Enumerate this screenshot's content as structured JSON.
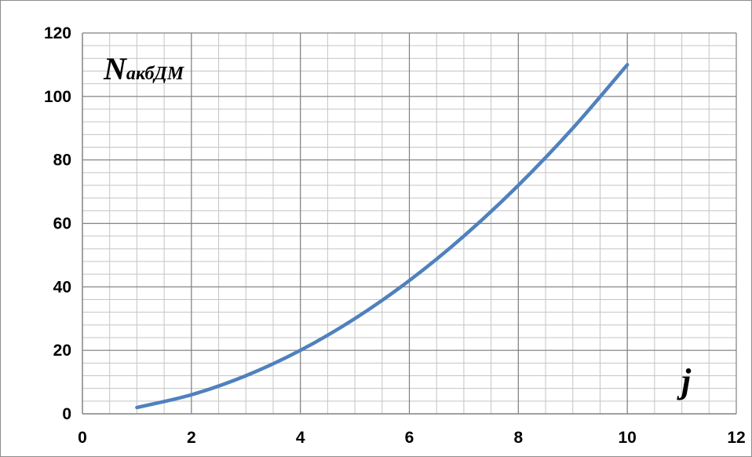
{
  "chart_data": {
    "type": "line",
    "title": "",
    "ylabel": {
      "main": "N",
      "sub": "акбДМ"
    },
    "xlabel": "j",
    "xlim": [
      0,
      12
    ],
    "ylim": [
      0,
      120
    ],
    "x_ticks": [
      0,
      2,
      4,
      6,
      8,
      10,
      12
    ],
    "y_ticks": [
      0,
      20,
      40,
      60,
      80,
      100,
      120
    ],
    "x_minor_step": 0.5,
    "y_minor_step": 4,
    "grid": true,
    "series": [
      {
        "x": [
          1,
          2,
          3,
          4,
          5,
          6,
          7,
          8,
          9,
          10
        ],
        "values": [
          2,
          6,
          12,
          20,
          30,
          42,
          56,
          72,
          90,
          110
        ],
        "color": "#4f81bd"
      }
    ],
    "colors": {
      "major_grid": "#808080",
      "minor_grid": "#c4c4c4",
      "frame": "#8c8c8c",
      "line": "#4f81bd"
    }
  }
}
